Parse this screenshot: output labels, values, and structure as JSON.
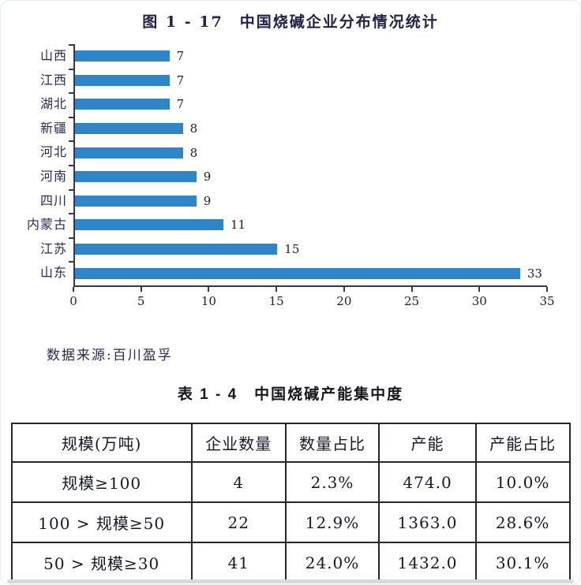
{
  "figure": {
    "title": "图 1 - 17　中国烧碱企业分布情况统计"
  },
  "chart_data": [
    {
      "type": "bar",
      "orientation": "horizontal",
      "title": "图 1 - 17　中国烧碱企业分布情况统计",
      "categories": [
        "山西",
        "江西",
        "湖北",
        "新疆",
        "河北",
        "河南",
        "四川",
        "内蒙古",
        "江苏",
        "山东"
      ],
      "values": [
        7,
        7,
        7,
        8,
        8,
        9,
        9,
        11,
        15,
        33
      ],
      "xlabel": "",
      "ylabel": "",
      "xlim": [
        0,
        35
      ],
      "x_ticks": [
        0,
        5,
        10,
        15,
        20,
        25,
        30,
        35
      ],
      "grid": false,
      "legend": "none",
      "bar_color": "#2e86c8",
      "data_labels": true
    },
    {
      "type": "table",
      "title": "表 1 - 4　中国烧碱产能集中度",
      "columns": [
        "规模(万吨)",
        "企业数量",
        "数量占比",
        "产能",
        "产能占比"
      ],
      "rows": [
        [
          "规模≥100",
          "4",
          "2.3%",
          "474.0",
          "10.0%"
        ],
        [
          "100 > 规模≥50",
          "22",
          "12.9%",
          "1363.0",
          "28.6%"
        ],
        [
          "50 > 规模≥30",
          "41",
          "24.0%",
          "1432.0",
          "30.1%"
        ]
      ]
    }
  ],
  "source_note": "数据来源:百川盈孚",
  "colors": {
    "bar": "#2e86c8",
    "axis": "#35355a",
    "text": "#23233f",
    "table_border": "#26262e"
  }
}
